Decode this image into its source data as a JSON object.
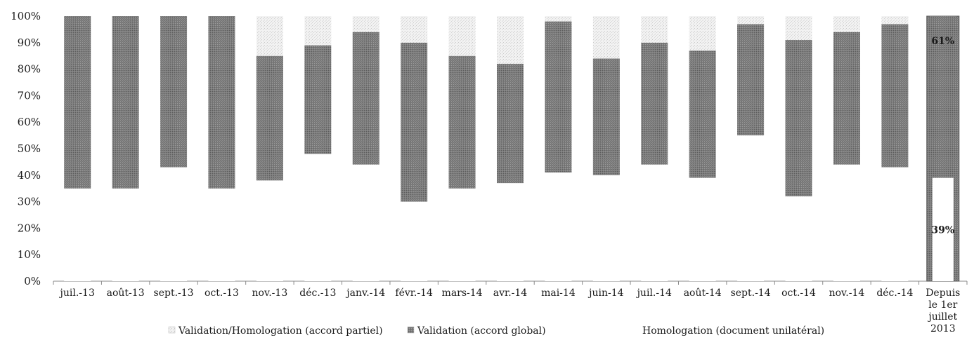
{
  "chart_data": {
    "type": "bar",
    "stacked": true,
    "normalized": true,
    "title": "",
    "xlabel": "",
    "ylabel": "",
    "ylim": [
      0,
      100
    ],
    "yticks": [
      "0%",
      "10%",
      "20%",
      "30%",
      "40%",
      "50%",
      "60%",
      "70%",
      "80%",
      "90%",
      "100%"
    ],
    "ytick_values": [
      0,
      10,
      20,
      30,
      40,
      50,
      60,
      70,
      80,
      90,
      100
    ],
    "categories": [
      "juil.-13",
      "août-13",
      "sept.-13",
      "oct.-13",
      "nov.-13",
      "déc.-13",
      "janv.-14",
      "févr.-14",
      "mars-14",
      "avr.-14",
      "mai-14",
      "juin-14",
      "juil.-14",
      "août-14",
      "sept.-14",
      "oct.-14",
      "nov.-14",
      "déc.-14",
      "Depuis le 1er juillet 2013"
    ],
    "series": [
      {
        "name": "Homologation (document unilatéral)",
        "color": "#ffffff",
        "values": [
          35,
          35,
          43,
          35,
          38,
          48,
          44,
          30,
          35,
          37,
          41,
          40,
          44,
          39,
          55,
          32,
          44,
          43,
          39
        ]
      },
      {
        "name": "Validation (accord global)",
        "color": "#777777",
        "values": [
          65,
          65,
          57,
          65,
          47,
          41,
          50,
          60,
          50,
          45,
          57,
          44,
          46,
          48,
          42,
          59,
          50,
          54,
          61
        ]
      },
      {
        "name": "Validation/Homologation (accord partiel)",
        "color": "#e0e0e0",
        "values": [
          0,
          0,
          0,
          0,
          15,
          11,
          6,
          10,
          15,
          18,
          2,
          16,
          10,
          13,
          3,
          9,
          6,
          3,
          0
        ]
      }
    ],
    "data_labels": [
      {
        "category_index": 18,
        "text": "61%"
      },
      {
        "category_index": 18,
        "text": "39%"
      }
    ],
    "legend": {
      "position": "bottom",
      "entries": [
        "Validation/Homologation (accord partiel)",
        "Validation (accord global)",
        "Homologation (document unilatéral)"
      ]
    },
    "grid": false
  }
}
